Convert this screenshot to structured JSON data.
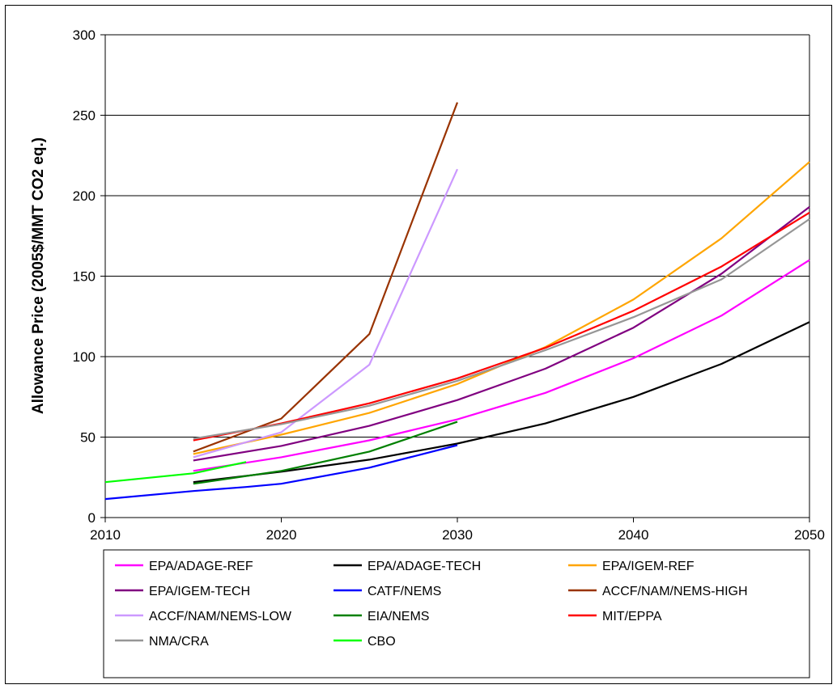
{
  "chart_data": {
    "type": "line",
    "title": "",
    "xlabel": "",
    "ylabel": "Allowance Price (2005$/MMT CO2 eq.)",
    "xlim": [
      2010,
      2050
    ],
    "ylim": [
      0,
      300
    ],
    "xticks": [
      2010,
      2020,
      2030,
      2040,
      2050
    ],
    "yticks": [
      0,
      50,
      100,
      150,
      200,
      250,
      300
    ],
    "grid": "horizontal",
    "legend_position": "bottom",
    "series": [
      {
        "name": "EPA/ADAGE-REF",
        "color": "#ff00ff",
        "x": [
          2015,
          2020,
          2025,
          2030,
          2035,
          2040,
          2045,
          2050
        ],
        "y": [
          29,
          37.5,
          48,
          61,
          77.5,
          99,
          125.5,
          160
        ]
      },
      {
        "name": "EPA/ADAGE-TECH",
        "color": "#000000",
        "x": [
          2015,
          2020,
          2025,
          2030,
          2035,
          2040,
          2045,
          2050
        ],
        "y": [
          22,
          28.5,
          36,
          46,
          58.5,
          75,
          95.5,
          121.5
        ]
      },
      {
        "name": "EPA/IGEM-REF",
        "color": "#ffa500",
        "x": [
          2015,
          2020,
          2025,
          2030,
          2035,
          2040,
          2045,
          2050
        ],
        "y": [
          39.5,
          51.5,
          65,
          83,
          106,
          135.5,
          173.5,
          221
        ]
      },
      {
        "name": "EPA/IGEM-TECH",
        "color": "#800080",
        "x": [
          2015,
          2020,
          2025,
          2030,
          2035,
          2040,
          2045,
          2050
        ],
        "y": [
          35.5,
          44.5,
          57,
          73,
          92.5,
          118,
          151.5,
          193
        ]
      },
      {
        "name": "CATF/NEMS",
        "color": "#0000ff",
        "x": [
          2010,
          2015,
          2018,
          2020,
          2025,
          2030
        ],
        "y": [
          11.5,
          16.5,
          19,
          21,
          31,
          45
        ]
      },
      {
        "name": "ACCF/NAM/NEMS-HIGH",
        "color": "#993300",
        "x": [
          2015,
          2020,
          2025,
          2030
        ],
        "y": [
          41,
          61.5,
          114,
          258
        ]
      },
      {
        "name": "ACCF/NAM/NEMS-LOW",
        "color": "#cc99ff",
        "x": [
          2015,
          2020,
          2025,
          2030
        ],
        "y": [
          37.5,
          53,
          95,
          216.5
        ]
      },
      {
        "name": "EIA/NEMS",
        "color": "#008000",
        "x": [
          2015,
          2020,
          2025,
          2030
        ],
        "y": [
          21,
          29,
          41,
          59.5
        ]
      },
      {
        "name": "MIT/EPPA",
        "color": "#ff0000",
        "x": [
          2015,
          2020,
          2025,
          2030,
          2035,
          2040,
          2045,
          2050
        ],
        "y": [
          48,
          58.5,
          71,
          86.5,
          105.5,
          128.5,
          156,
          189.5
        ]
      },
      {
        "name": "NMA/CRA",
        "color": "#969696",
        "x": [
          2015,
          2020,
          2025,
          2030,
          2035,
          2040,
          2045,
          2050
        ],
        "y": [
          49,
          58,
          69.5,
          85,
          104,
          124.5,
          148,
          185.5
        ]
      },
      {
        "name": "CBO",
        "color": "#00ff00",
        "x": [
          2010,
          2015,
          2018
        ],
        "y": [
          22,
          27.5,
          34.5
        ]
      }
    ]
  }
}
